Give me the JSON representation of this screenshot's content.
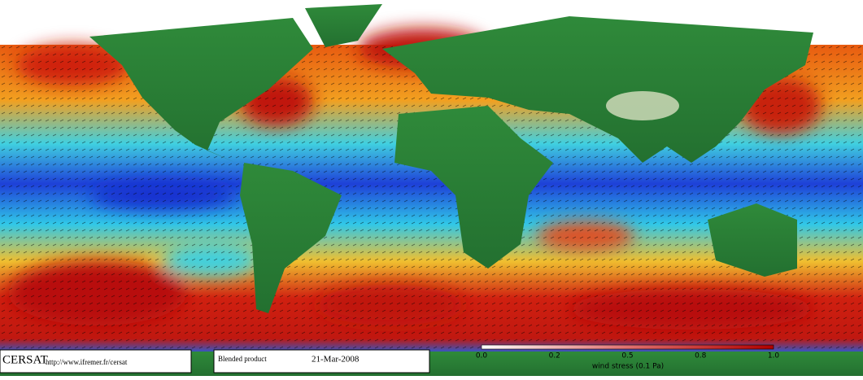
{
  "logo": {
    "name": "CERSAT",
    "url": "http://www.ifremer.fr/cersat"
  },
  "product": {
    "label": "Blended product",
    "date": "21-Mar-2008"
  },
  "colorbar": {
    "tick_labels": [
      "0.0",
      "0.2",
      "0.5",
      "0.8",
      "1.0"
    ],
    "label": "wind stress (0.1 Pa)"
  }
}
